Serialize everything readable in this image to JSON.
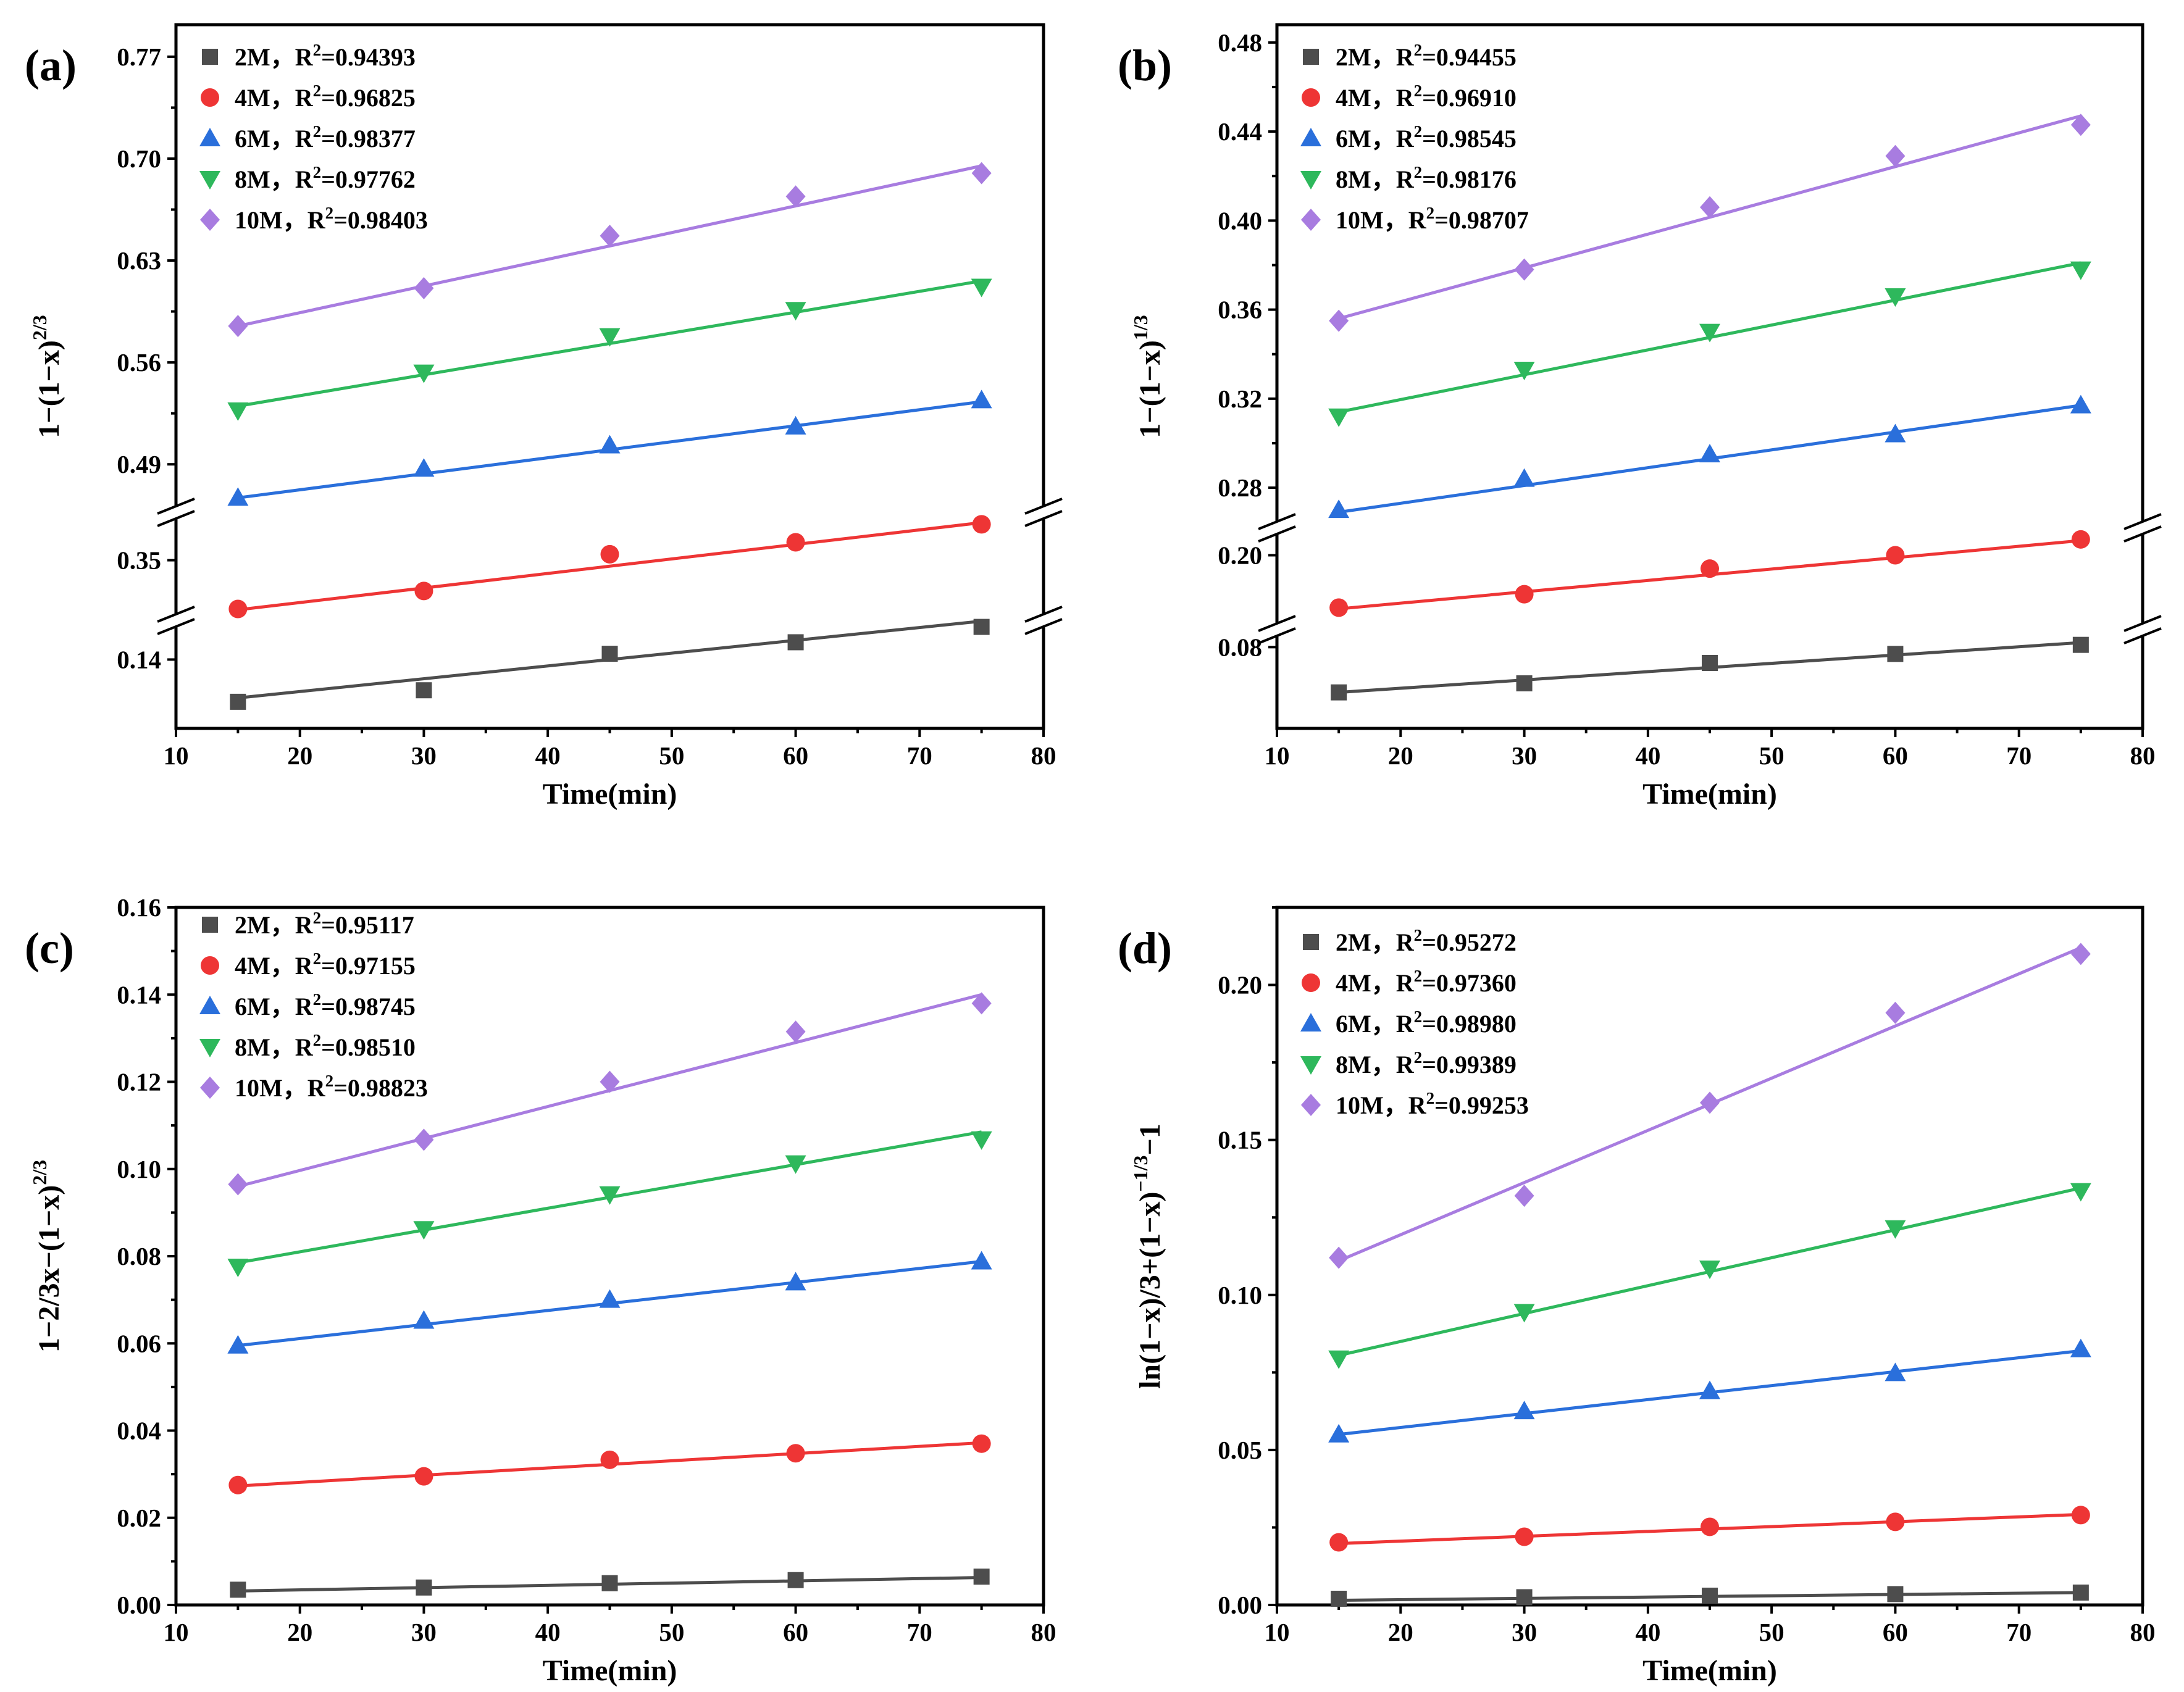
{
  "chart_data": [
    {
      "type": "scatter",
      "panel_label": "(a)",
      "xlabel": "Time(min)",
      "ylabel": "1−(1−x)",
      "ylabel_sup": "2/3",
      "xlim": [
        10,
        80
      ],
      "xticks": [
        10,
        20,
        30,
        40,
        50,
        60,
        70,
        80
      ],
      "x": [
        15,
        30,
        45,
        60,
        75
      ],
      "axis_break": true,
      "yticks": [
        "0.14",
        "0.35",
        "0.49",
        "0.56",
        "0.63",
        "0.70",
        "0.77"
      ],
      "legend_position": "top-left",
      "series": [
        {
          "name": "2M，R",
          "r2_sup": "2",
          "r2_value": "=0.94393",
          "color": "#4d4d4d",
          "marker": "square",
          "values": [
            0.118,
            0.124,
            0.143,
            0.149,
            0.157
          ],
          "fit": [
            0.12,
            0.16
          ]
        },
        {
          "name": "4M，R",
          "r2_sup": "2",
          "r2_value": "=0.96825",
          "color": "#ee3535",
          "marker": "circle",
          "values": [
            0.3215,
            0.332,
            0.3535,
            0.3605,
            0.371
          ],
          "fit": [
            0.321,
            0.372
          ]
        },
        {
          "name": "6M，R",
          "r2_sup": "2",
          "r2_value": "=0.98377",
          "color": "#2a6fdb",
          "marker": "triangle-up",
          "values": [
            0.467,
            0.487,
            0.503,
            0.516,
            0.534
          ],
          "fit": [
            0.467,
            0.533
          ]
        },
        {
          "name": "8M，R",
          "r2_sup": "2",
          "r2_value": "=0.97762",
          "color": "#2eb85c",
          "marker": "triangle-down",
          "values": [
            0.527,
            0.553,
            0.578,
            0.596,
            0.612
          ],
          "fit": [
            0.53,
            0.616
          ]
        },
        {
          "name": "10M，R",
          "r2_sup": "2",
          "r2_value": "=0.98403",
          "color": "#a87ce0",
          "marker": "diamond",
          "values": [
            0.585,
            0.611,
            0.647,
            0.674,
            0.69
          ],
          "fit": [
            0.585,
            0.695
          ]
        }
      ]
    },
    {
      "type": "scatter",
      "panel_label": "(b)",
      "xlabel": "Time(min)",
      "ylabel": "1−(1−x)",
      "ylabel_sup": "1/3",
      "xlim": [
        10,
        80
      ],
      "xticks": [
        10,
        20,
        30,
        40,
        50,
        60,
        70,
        80
      ],
      "x": [
        15,
        30,
        45,
        60,
        75
      ],
      "axis_break": true,
      "yticks": [
        "0.08",
        "0.20",
        "0.28",
        "0.32",
        "0.36",
        "0.40",
        "0.44",
        "0.48"
      ],
      "legend_position": "top-left",
      "series": [
        {
          "name": "2M，R",
          "r2_sup": "2",
          "r2_value": "=0.94455",
          "color": "#4d4d4d",
          "marker": "square",
          "values": [
            0.06,
            0.064,
            0.073,
            0.077,
            0.081
          ],
          "fit": [
            0.06,
            0.082
          ]
        },
        {
          "name": "4M，R",
          "r2_sup": "2",
          "r2_value": "=0.96910",
          "color": "#ee3535",
          "marker": "circle",
          "values": [
            0.1785,
            0.184,
            0.1945,
            0.2,
            0.2065
          ],
          "fit": [
            0.178,
            0.206
          ]
        },
        {
          "name": "6M，R",
          "r2_sup": "2",
          "r2_value": "=0.98545",
          "color": "#2a6fdb",
          "marker": "triangle-up",
          "values": [
            0.27,
            0.284,
            0.295,
            0.304,
            0.317
          ],
          "fit": [
            0.269,
            0.317
          ]
        },
        {
          "name": "8M，R",
          "r2_sup": "2",
          "r2_value": "=0.98176",
          "color": "#2eb85c",
          "marker": "triangle-down",
          "values": [
            0.312,
            0.333,
            0.35,
            0.366,
            0.378
          ],
          "fit": [
            0.314,
            0.381
          ]
        },
        {
          "name": "10M，R",
          "r2_sup": "2",
          "r2_value": "=0.98707",
          "color": "#a87ce0",
          "marker": "diamond",
          "values": [
            0.355,
            0.378,
            0.406,
            0.429,
            0.443
          ],
          "fit": [
            0.356,
            0.447
          ]
        }
      ]
    },
    {
      "type": "scatter",
      "panel_label": "(c)",
      "xlabel": "Time(min)",
      "ylabel": "1−2/3x−(1−x)",
      "ylabel_sup": "2/3",
      "xlim": [
        10,
        80
      ],
      "xticks": [
        10,
        20,
        30,
        40,
        50,
        60,
        70,
        80
      ],
      "x": [
        15,
        30,
        45,
        60,
        75
      ],
      "axis_break": false,
      "ylim": [
        0,
        0.16
      ],
      "yticks": [
        "0.00",
        "0.02",
        "0.04",
        "0.06",
        "0.08",
        "0.10",
        "0.12",
        "0.14",
        "0.16"
      ],
      "legend_position": "top-left",
      "series": [
        {
          "name": "2M，R",
          "r2_sup": "2",
          "r2_value": "=0.95117",
          "color": "#4d4d4d",
          "marker": "square",
          "values": [
            0.0035,
            0.004,
            0.005,
            0.0057,
            0.0065
          ],
          "fit": [
            0.0032,
            0.0063
          ]
        },
        {
          "name": "4M，R",
          "r2_sup": "2",
          "r2_value": "=0.97155",
          "color": "#ee3535",
          "marker": "circle",
          "values": [
            0.0275,
            0.0295,
            0.0333,
            0.0348,
            0.037
          ],
          "fit": [
            0.0273,
            0.0372
          ]
        },
        {
          "name": "6M，R",
          "r2_sup": "2",
          "r2_value": "=0.98745",
          "color": "#2a6fdb",
          "marker": "triangle-up",
          "values": [
            0.0595,
            0.0652,
            0.07,
            0.074,
            0.0788
          ],
          "fit": [
            0.0595,
            0.0788
          ]
        },
        {
          "name": "8M，R",
          "r2_sup": "2",
          "r2_value": "=0.98510",
          "color": "#2eb85c",
          "marker": "triangle-down",
          "values": [
            0.0776,
            0.0862,
            0.0942,
            0.1013,
            0.1068
          ],
          "fit": [
            0.0785,
            0.1085
          ]
        },
        {
          "name": "10M，R",
          "r2_sup": "2",
          "r2_value": "=0.98823",
          "color": "#a87ce0",
          "marker": "diamond",
          "values": [
            0.0965,
            0.1067,
            0.12,
            0.1315,
            0.138
          ],
          "fit": [
            0.096,
            0.14
          ]
        }
      ]
    },
    {
      "type": "scatter",
      "panel_label": "(d)",
      "xlabel": "Time(min)",
      "ylabel": "ln(1−x)/3+(1−x)",
      "ylabel_sup": "−1/3",
      "ylabel_suffix": "−1",
      "xlim": [
        10,
        80
      ],
      "xticks": [
        10,
        20,
        30,
        40,
        50,
        60,
        70,
        80
      ],
      "x": [
        15,
        30,
        45,
        60,
        75
      ],
      "axis_break": false,
      "ylim": [
        0,
        0.225
      ],
      "yticks": [
        "0.00",
        "0.05",
        "0.10",
        "0.15",
        "0.20"
      ],
      "legend_position": "top-left",
      "series": [
        {
          "name": "2M，R",
          "r2_sup": "2",
          "r2_value": "=0.95272",
          "color": "#4d4d4d",
          "marker": "square",
          "values": [
            0.002,
            0.0025,
            0.003,
            0.0035,
            0.004
          ],
          "fit": [
            0.0015,
            0.004
          ]
        },
        {
          "name": "4M，R",
          "r2_sup": "2",
          "r2_value": "=0.97360",
          "color": "#ee3535",
          "marker": "circle",
          "values": [
            0.0202,
            0.022,
            0.0252,
            0.0268,
            0.029
          ],
          "fit": [
            0.0198,
            0.0292
          ]
        },
        {
          "name": "6M，R",
          "r2_sup": "2",
          "r2_value": "=0.98980",
          "color": "#2a6fdb",
          "marker": "triangle-up",
          "values": [
            0.055,
            0.0625,
            0.069,
            0.0748,
            0.0825
          ],
          "fit": [
            0.055,
            0.082
          ]
        },
        {
          "name": "8M，R",
          "r2_sup": "2",
          "r2_value": "=0.99389",
          "color": "#2eb85c",
          "marker": "triangle-down",
          "values": [
            0.0795,
            0.0945,
            0.1085,
            0.1215,
            0.1335
          ],
          "fit": [
            0.0805,
            0.1345
          ]
        },
        {
          "name": "10M，R",
          "r2_sup": "2",
          "r2_value": "=0.99253",
          "color": "#a87ce0",
          "marker": "diamond",
          "values": [
            0.112,
            0.132,
            0.162,
            0.191,
            0.21
          ],
          "fit": [
            0.111,
            0.212
          ]
        }
      ]
    }
  ]
}
